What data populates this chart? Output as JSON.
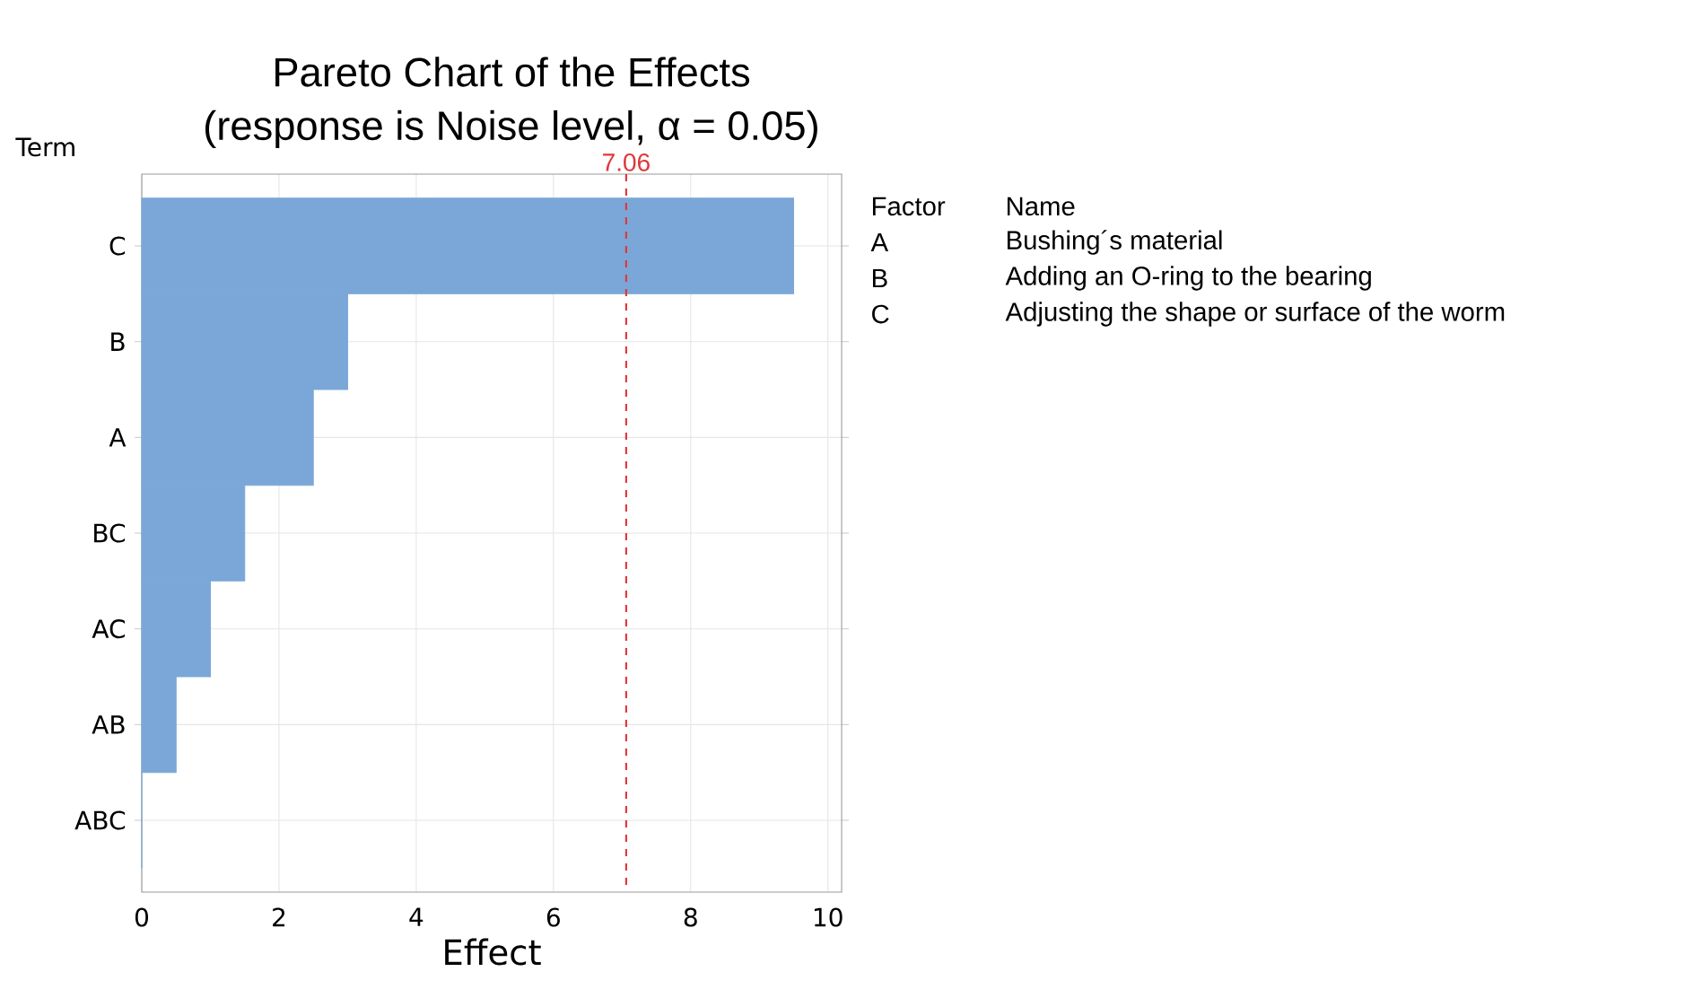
{
  "chart_data": {
    "type": "bar",
    "orientation": "horizontal",
    "title": "Pareto Chart of the Effects",
    "subtitle": "(response is Noise level, α = 0.05)",
    "ylabel": "Term",
    "xlabel": "Effect",
    "categories": [
      "C",
      "B",
      "A",
      "BC",
      "AC",
      "AB",
      "ABC"
    ],
    "values": [
      9.5,
      3.0,
      2.5,
      1.5,
      1.0,
      0.5,
      0
    ],
    "color": "#7ba7d8",
    "xlim": [
      0,
      10.2
    ],
    "xticks": [
      0,
      2,
      4,
      6,
      8,
      10
    ],
    "grid": true,
    "ref_lines": [
      {
        "axis": "x",
        "value": 7.06,
        "label": "7.06",
        "color": "#e0363a",
        "line_style": "dashed"
      }
    ],
    "annotations": [
      "Factor",
      "Name",
      "A",
      "Bushing´s material",
      "B",
      "Adding an O-ring to the bearing",
      "C",
      "Adjusting the shape or surface of the worm"
    ]
  }
}
